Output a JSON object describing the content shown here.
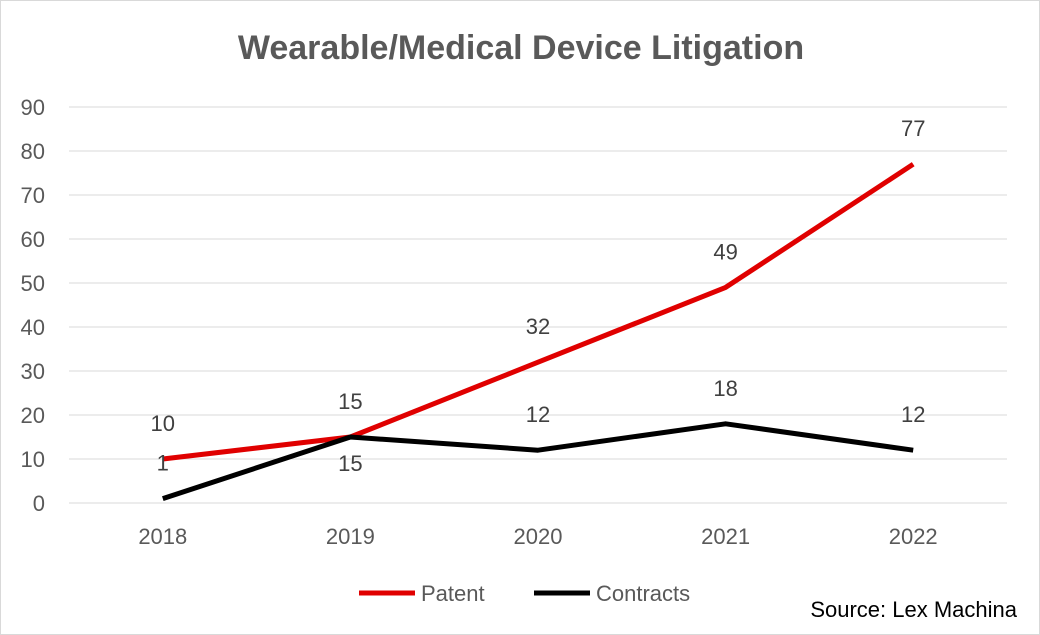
{
  "chart_data": {
    "type": "line",
    "title": "Wearable/Medical Device Litigation",
    "categories": [
      "2018",
      "2019",
      "2020",
      "2021",
      "2022"
    ],
    "series": [
      {
        "name": "Patent",
        "values": [
          10,
          15,
          32,
          49,
          77
        ],
        "color": "#e00000"
      },
      {
        "name": "Contracts",
        "values": [
          1,
          15,
          12,
          18,
          12
        ],
        "color": "#000000"
      }
    ],
    "ylim": [
      0,
      90
    ],
    "yticks": [
      0,
      10,
      20,
      30,
      40,
      50,
      60,
      70,
      80,
      90
    ],
    "grid": true,
    "legend_position": "bottom",
    "data_labels": true,
    "xlabel": "",
    "ylabel": ""
  },
  "source": "Source: Lex Machina"
}
